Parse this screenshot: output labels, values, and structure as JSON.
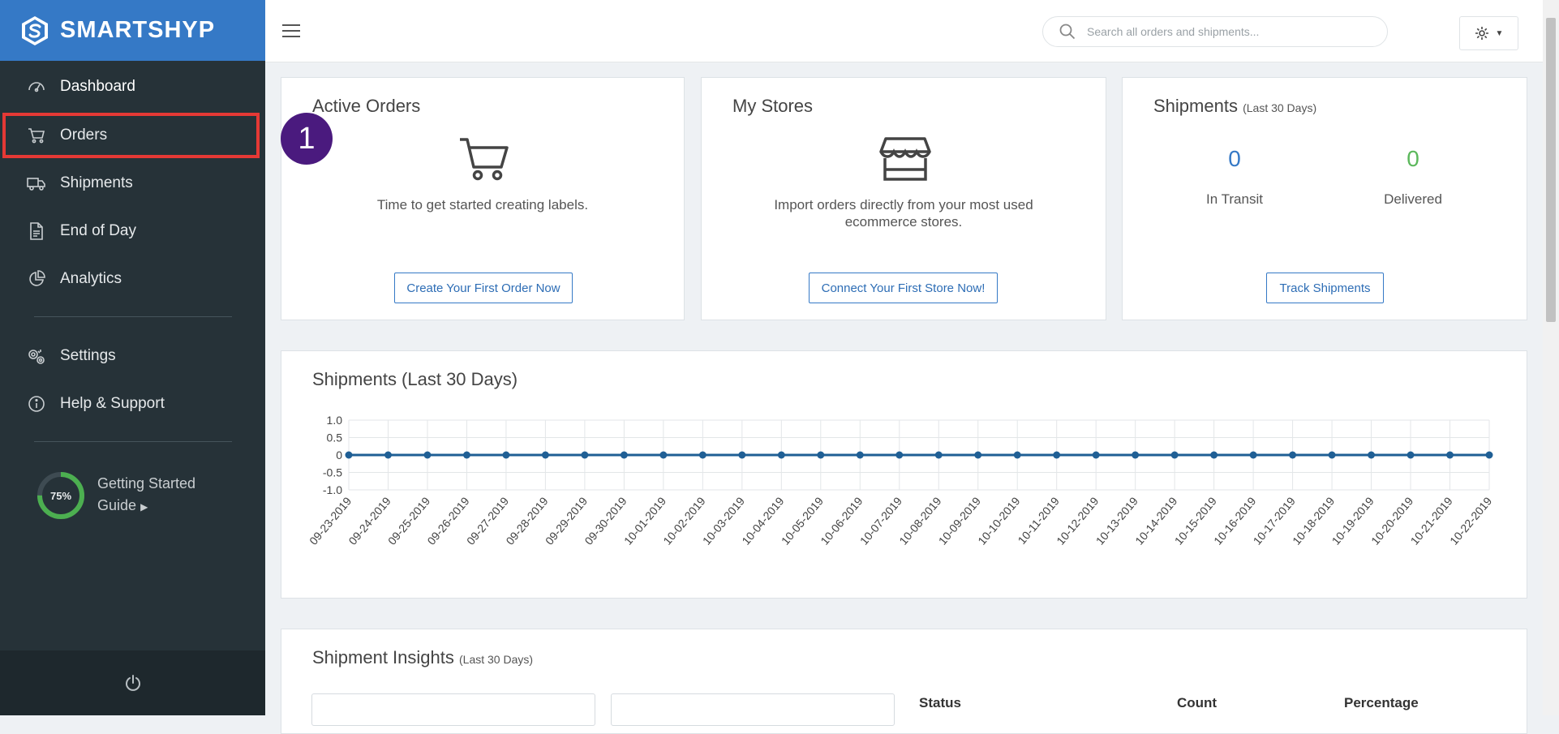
{
  "brand": {
    "name": "SMARTSHYP"
  },
  "sidebar": {
    "items": [
      {
        "label": "Dashboard",
        "icon": "dashboard-icon"
      },
      {
        "label": "Orders",
        "icon": "cart-icon"
      },
      {
        "label": "Shipments",
        "icon": "truck-icon"
      },
      {
        "label": "End of Day",
        "icon": "document-icon"
      },
      {
        "label": "Analytics",
        "icon": "pie-chart-icon"
      },
      {
        "label": "Settings",
        "icon": "gears-icon"
      },
      {
        "label": "Help & Support",
        "icon": "info-icon"
      }
    ],
    "guide": {
      "percent": "75%",
      "progress": 0.75,
      "line1": "Getting Started",
      "line2": "Guide"
    }
  },
  "search": {
    "placeholder": "Search all orders and shipments..."
  },
  "step_badge": "1",
  "cards": {
    "active_orders": {
      "title": "Active Orders",
      "message": "Time to get started creating labels.",
      "button": "Create Your First Order Now"
    },
    "my_stores": {
      "title": "My Stores",
      "message_line1": "Import orders directly from your most used",
      "message_line2": "ecommerce stores.",
      "button": "Connect Your First Store Now!"
    },
    "shipments": {
      "title": "Shipments",
      "subtitle": "(Last 30 Days)",
      "in_transit_value": "0",
      "in_transit_label": "In Transit",
      "delivered_value": "0",
      "delivered_label": "Delivered",
      "button": "Track Shipments"
    }
  },
  "chart_section": {
    "title": "Shipments (Last 30 Days)"
  },
  "chart_data": {
    "type": "line",
    "title": "Shipments (Last 30 Days)",
    "x": [
      "09-23-2019",
      "09-24-2019",
      "09-25-2019",
      "09-26-2019",
      "09-27-2019",
      "09-28-2019",
      "09-29-2019",
      "09-30-2019",
      "10-01-2019",
      "10-02-2019",
      "10-03-2019",
      "10-04-2019",
      "10-05-2019",
      "10-06-2019",
      "10-07-2019",
      "10-08-2019",
      "10-09-2019",
      "10-10-2019",
      "10-11-2019",
      "10-12-2019",
      "10-13-2019",
      "10-14-2019",
      "10-15-2019",
      "10-16-2019",
      "10-17-2019",
      "10-18-2019",
      "10-19-2019",
      "10-20-2019",
      "10-21-2019",
      "10-22-2019"
    ],
    "series": [
      {
        "values": [
          0,
          0,
          0,
          0,
          0,
          0,
          0,
          0,
          0,
          0,
          0,
          0,
          0,
          0,
          0,
          0,
          0,
          0,
          0,
          0,
          0,
          0,
          0,
          0,
          0,
          0,
          0,
          0,
          0,
          0
        ]
      }
    ],
    "ylim": [
      -1.0,
      1.0
    ],
    "yticks": [
      "1.0",
      "0.5",
      "0",
      "-0.5",
      "-1.0"
    ],
    "grid": true,
    "color": "#1f5f95"
  },
  "insights": {
    "title": "Shipment Insights",
    "subtitle": "(Last 30 Days)",
    "columns": [
      "Status",
      "Count",
      "Percentage"
    ]
  },
  "colors": {
    "brand": "#3579c6",
    "sidebar": "#263238",
    "highlight": "#e53935",
    "badge": "#4a1a7e",
    "transit": "#3579c6",
    "delivered": "#5cb85c"
  }
}
